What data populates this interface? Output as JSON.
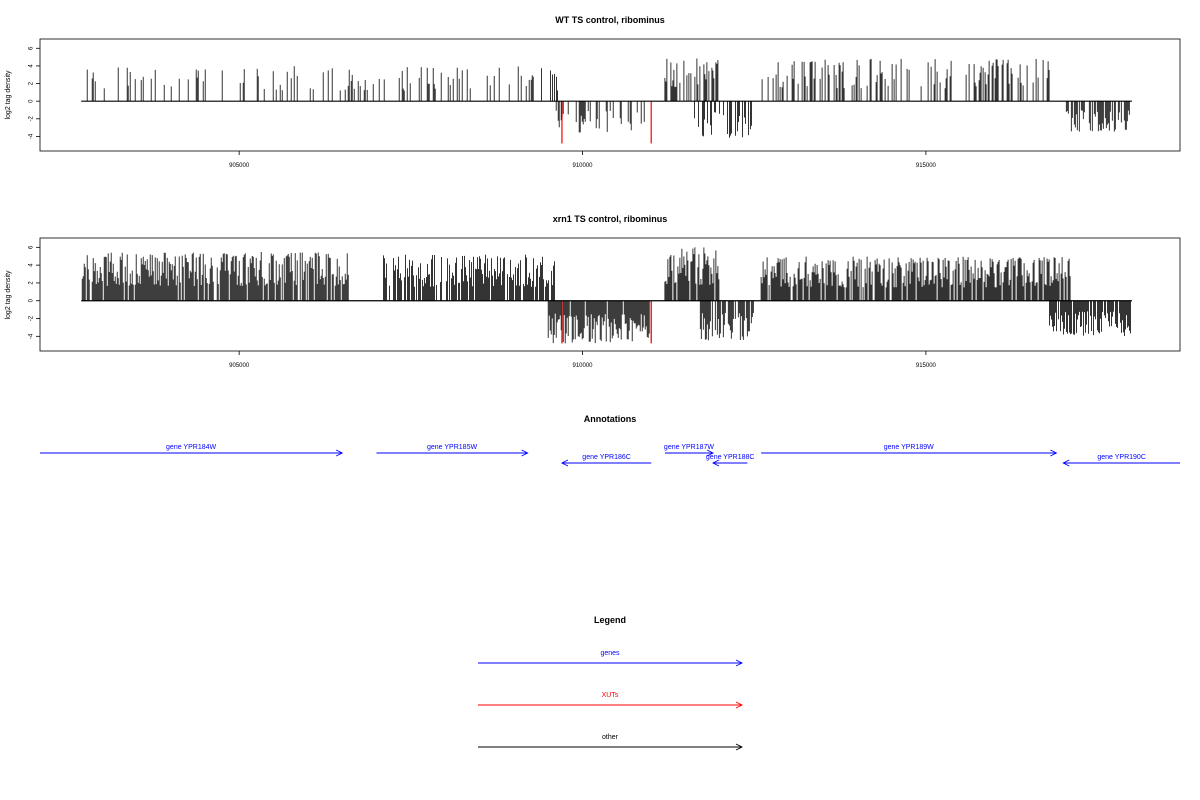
{
  "colors": {
    "axis": "#000000",
    "bars": "#000000",
    "xut": "#ff0000",
    "gene": "#0000ff",
    "other": "#000000"
  },
  "chart_data": [
    {
      "type": "bar",
      "title": "WT TS control, ribominus",
      "xlabel": "",
      "ylabel": "log2 tag density",
      "xlim": [
        902100,
        918700
      ],
      "ylim": [
        -5.2,
        6.6
      ],
      "xticks": [
        905000,
        910000,
        915000
      ],
      "xtick_labels": [
        "905000",
        "910000",
        "915000"
      ],
      "yticks": [
        -4,
        -2,
        0,
        2,
        4,
        6
      ],
      "ytick_labels": [
        "-4",
        "-2",
        "0",
        "2",
        "4",
        "6"
      ],
      "baseline": [
        902700,
        918000
      ],
      "density_profile": [
        {
          "range": [
            902700,
            909300
          ],
          "strand": "+",
          "max": 4.0,
          "density": 0.22
        },
        {
          "range": [
            909300,
            909700
          ],
          "strand": "+",
          "max": 4.0,
          "density": 0.3
        },
        {
          "range": [
            909500,
            910900
          ],
          "strand": "-",
          "max": 3.6,
          "density": 0.25
        },
        {
          "range": [
            911200,
            912000
          ],
          "strand": "+",
          "max": 5.0,
          "density": 0.6
        },
        {
          "range": [
            911600,
            912500
          ],
          "strand": "-",
          "max": 4.2,
          "density": 0.45
        },
        {
          "range": [
            912600,
            916800
          ],
          "strand": "+",
          "max": 4.8,
          "density": 0.35
        },
        {
          "range": [
            917000,
            918000
          ],
          "strand": "-",
          "max": 3.5,
          "density": 0.6
        }
      ],
      "highlight_bars": [
        {
          "x": 909700,
          "value": -4.8
        },
        {
          "x": 911000,
          "value": -4.8
        }
      ]
    },
    {
      "type": "bar",
      "title": "xrn1 TS control, ribominus",
      "xlabel": "",
      "ylabel": "log2 tag density",
      "xlim": [
        902100,
        918700
      ],
      "ylim": [
        -5.2,
        6.6
      ],
      "xticks": [
        905000,
        910000,
        915000
      ],
      "xtick_labels": [
        "905000",
        "910000",
        "915000"
      ],
      "yticks": [
        -4,
        -2,
        0,
        2,
        4,
        6
      ],
      "ytick_labels": [
        "-4",
        "-2",
        "0",
        "2",
        "4",
        "6"
      ],
      "baseline": [
        902700,
        918000
      ],
      "density_profile": [
        {
          "range": [
            902700,
            906600
          ],
          "strand": "+",
          "max": 5.5,
          "density": 0.9
        },
        {
          "range": [
            907100,
            909600
          ],
          "strand": "+",
          "max": 5.2,
          "density": 0.8
        },
        {
          "range": [
            909500,
            911000
          ],
          "strand": "-",
          "max": 4.8,
          "density": 0.95
        },
        {
          "range": [
            911200,
            912000
          ],
          "strand": "+",
          "max": 6.0,
          "density": 0.95
        },
        {
          "range": [
            911700,
            912500
          ],
          "strand": "-",
          "max": 4.5,
          "density": 0.8
        },
        {
          "range": [
            912600,
            917100
          ],
          "strand": "+",
          "max": 5.0,
          "density": 0.85
        },
        {
          "range": [
            916800,
            918000
          ],
          "strand": "-",
          "max": 4.0,
          "density": 0.85
        }
      ],
      "highlight_bars": [
        {
          "x": 909700,
          "value": -4.8
        },
        {
          "x": 911000,
          "value": -4.8
        }
      ]
    }
  ],
  "annotations": {
    "title": "Annotations",
    "genes": [
      {
        "label": "gene YPR184W",
        "strand": "+",
        "start": 902100,
        "end": 906500,
        "row": 0
      },
      {
        "label": "gene YPR185W",
        "strand": "+",
        "start": 907000,
        "end": 909200,
        "row": 0
      },
      {
        "label": "gene YPR186C",
        "strand": "-",
        "start": 909700,
        "end": 911000,
        "row": 1
      },
      {
        "label": "gene YPR187W",
        "strand": "+",
        "start": 911200,
        "end": 911900,
        "row": 0
      },
      {
        "label": "gene YPR188C",
        "strand": "-",
        "start": 911900,
        "end": 912400,
        "row": 1
      },
      {
        "label": "gene YPR189W",
        "strand": "+",
        "start": 912600,
        "end": 916900,
        "row": 0
      },
      {
        "label": "gene YPR190C",
        "strand": "-",
        "start": 917000,
        "end": 918700,
        "row": 1
      }
    ]
  },
  "legend": {
    "title": "Legend",
    "items": [
      {
        "label": "genes",
        "color": "#0000ff"
      },
      {
        "label": "XUTs",
        "color": "#ff0000"
      },
      {
        "label": "other",
        "color": "#000000"
      }
    ]
  }
}
